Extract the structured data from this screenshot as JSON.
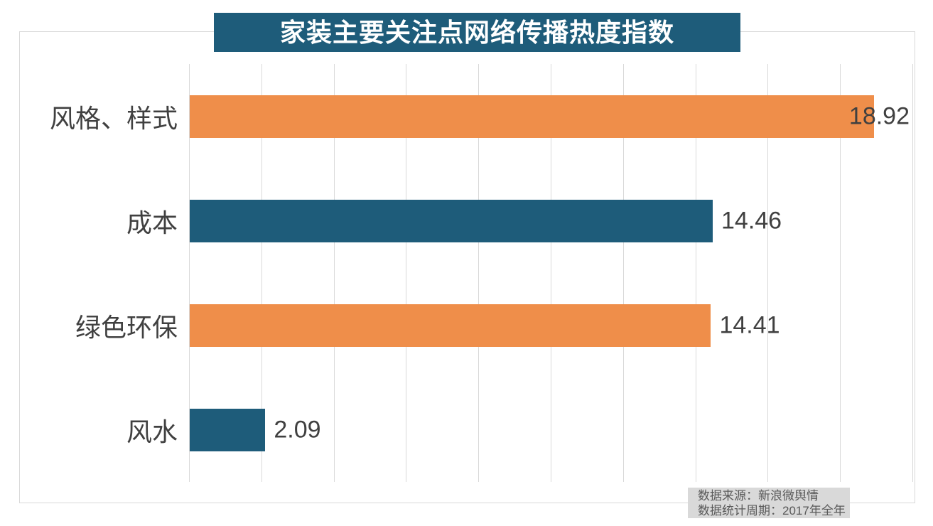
{
  "chart_data": {
    "type": "bar",
    "orientation": "horizontal",
    "title": "家装主要关注点网络传播热度指数",
    "categories": [
      "风格、样式",
      "成本",
      "绿色环保",
      "风水"
    ],
    "values": [
      18.92,
      14.46,
      14.41,
      2.09
    ],
    "value_labels": [
      "18.92",
      "14.46",
      "14.41",
      "2.09"
    ],
    "bar_colors": [
      "#EF8E4A",
      "#1E5C7A",
      "#EF8E4A",
      "#1E5C7A"
    ],
    "xlabel": "",
    "ylabel": "",
    "xlim": [
      0,
      20
    ],
    "gridline_step": 2,
    "grid": "vertical-only",
    "legend_position": "none"
  },
  "source_note": {
    "line1": "数据来源：新浪微舆情",
    "line2": "数据统计周期：2017年全年"
  },
  "colors": {
    "title_bg": "#1E5C7A",
    "title_text": "#FFFFFF",
    "bar_teal": "#1E5C7A",
    "bar_orange": "#EF8E4A",
    "gridline": "#D9D9D9",
    "chart_border": "#D9D9D9",
    "label_text": "#404040",
    "source_bg": "#D9D9D9",
    "source_text": "#595959"
  }
}
